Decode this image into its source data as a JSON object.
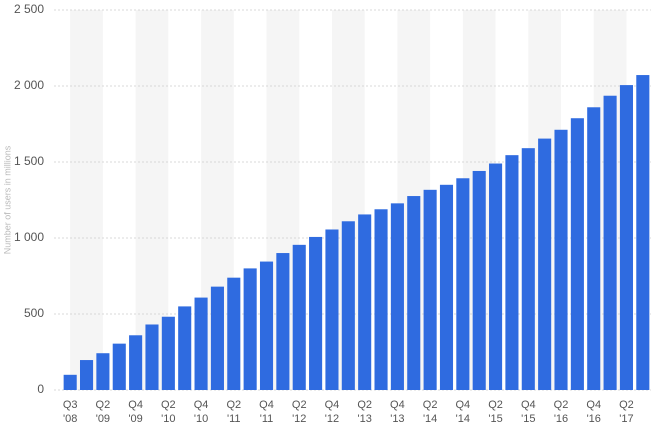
{
  "chart_data": {
    "type": "bar",
    "y_label": "Number of users in millions",
    "categories": [
      "Q3\n'08",
      null,
      "Q2\n'09",
      null,
      "Q4\n'09",
      null,
      "Q2\n'10",
      null,
      "Q4\n'10",
      null,
      "Q2\n'11",
      null,
      "Q4\n'11",
      null,
      "Q2\n'12",
      null,
      "Q4\n'12",
      null,
      "Q2\n'13",
      null,
      "Q4\n'13",
      null,
      "Q2\n'14",
      null,
      "Q4\n'14",
      null,
      "Q2\n'15",
      null,
      "Q4\n'15",
      null,
      "Q2\n'16",
      null,
      "Q4\n'16",
      null,
      "Q2\n'17",
      null
    ],
    "values": [
      100,
      197,
      242,
      305,
      360,
      431,
      482,
      550,
      608,
      680,
      739,
      800,
      845,
      901,
      955,
      1007,
      1056,
      1110,
      1155,
      1189,
      1228,
      1276,
      1317,
      1350,
      1393,
      1441,
      1490,
      1545,
      1591,
      1654,
      1712,
      1788,
      1860,
      1936,
      2006,
      2072
    ],
    "color": "#2f6be0",
    "ylim": [
      0,
      2500
    ],
    "yticks": [
      0,
      500,
      {
        "value": 1000,
        "label": "1 000"
      },
      {
        "value": 1500,
        "label": "1 500"
      },
      {
        "value": 2000,
        "label": "2 000"
      },
      {
        "value": 2500,
        "label": "2 500"
      }
    ],
    "grid": true
  }
}
